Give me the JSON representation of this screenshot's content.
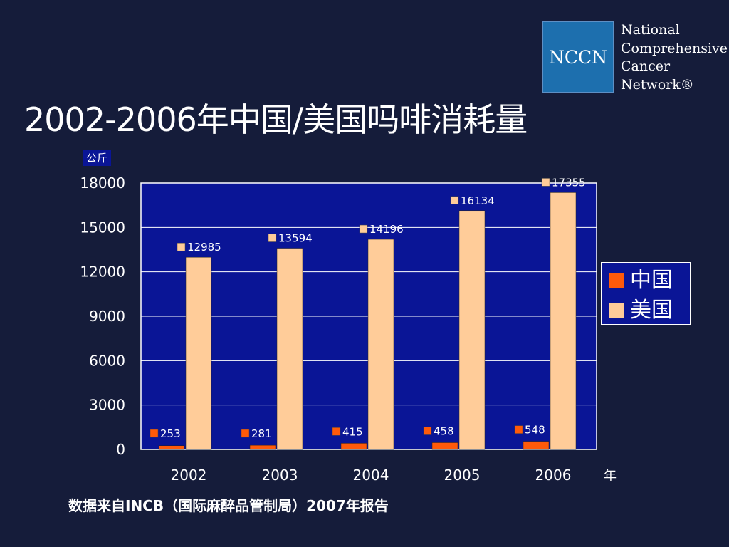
{
  "title": "2002-2006年中国/美国吗啡消耗量",
  "logo": {
    "abbr": "NCCN",
    "line1": "National",
    "line2": "Comprehensive",
    "line3": "Cancer",
    "line4": "Network®"
  },
  "source": "数据来自INCB（国际麻醉品管制局）2007年报告",
  "chart_data": {
    "type": "bar",
    "title": "",
    "ylabel": "公斤",
    "xlabel": "年",
    "categories": [
      "2002",
      "2003",
      "2004",
      "2005",
      "2006"
    ],
    "series": [
      {
        "name": "中国",
        "values": [
          253,
          281,
          415,
          458,
          548
        ],
        "color": "#ff5a0a"
      },
      {
        "name": "美国",
        "values": [
          12985,
          13594,
          14196,
          16134,
          17355
        ],
        "color": "#ffcc99"
      }
    ],
    "ylim": [
      0,
      18000
    ],
    "yticks": [
      0,
      3000,
      6000,
      9000,
      12000,
      15000,
      18000
    ],
    "grid": true,
    "legend": "right",
    "plot_background": "#0a1596"
  }
}
